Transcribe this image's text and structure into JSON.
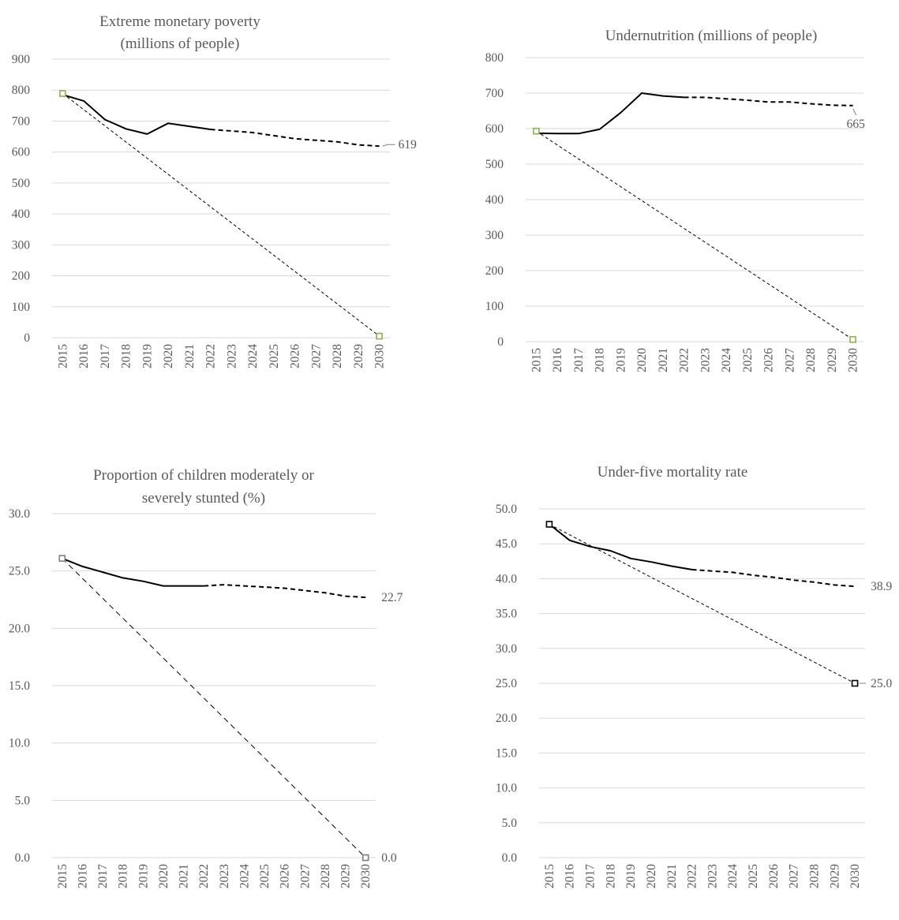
{
  "chart_data": [
    {
      "type": "line",
      "title": [
        "Extreme monetary poverty",
        "(millions of people)"
      ],
      "ylim": [
        0,
        900
      ],
      "ytick_step": 100,
      "ytick_decimals": 0,
      "grid": true,
      "categories": [
        "2015",
        "2016",
        "2017",
        "2018",
        "2019",
        "2020",
        "2021",
        "2022",
        "2023",
        "2024",
        "2025",
        "2026",
        "2027",
        "2028",
        "2029",
        "2030"
      ],
      "series": [
        {
          "style": "solid",
          "values": [
            785,
            765,
            705,
            675,
            658,
            693,
            683,
            673,
            null,
            null,
            null,
            null,
            null,
            null,
            null,
            null
          ]
        },
        {
          "style": "dashed",
          "values": [
            null,
            null,
            null,
            null,
            null,
            null,
            null,
            673,
            668,
            663,
            653,
            643,
            638,
            633,
            623,
            619
          ]
        },
        {
          "style": "target",
          "values": [
            789,
            null,
            null,
            null,
            null,
            null,
            null,
            null,
            null,
            null,
            null,
            null,
            null,
            null,
            null,
            5
          ]
        }
      ],
      "marker_color": "#8db04c",
      "end_labels": [
        {
          "text": "619",
          "value": 619
        }
      ]
    },
    {
      "type": "line",
      "title": [
        "Undernutrition (millions of people)"
      ],
      "ylim": [
        0,
        800
      ],
      "ytick_step": 100,
      "ytick_decimals": 0,
      "grid": true,
      "categories": [
        "2015",
        "2016",
        "2017",
        "2018",
        "2019",
        "2020",
        "2021",
        "2022",
        "2023",
        "2024",
        "2025",
        "2026",
        "2027",
        "2028",
        "2029",
        "2030"
      ],
      "series": [
        {
          "style": "solid",
          "values": [
            587,
            586,
            586,
            598,
            645,
            700,
            692,
            688,
            null,
            null,
            null,
            null,
            null,
            null,
            null,
            null
          ]
        },
        {
          "style": "dashed",
          "values": [
            null,
            null,
            null,
            null,
            null,
            null,
            null,
            688,
            688,
            684,
            680,
            675,
            675,
            670,
            666,
            665
          ]
        },
        {
          "style": "target",
          "values": [
            593,
            null,
            null,
            null,
            null,
            null,
            null,
            null,
            null,
            null,
            null,
            null,
            null,
            null,
            null,
            6
          ]
        }
      ],
      "marker_color": "#8db04c",
      "end_labels": [
        {
          "text": "665",
          "value": 665
        }
      ]
    },
    {
      "type": "line",
      "title": [
        "Proportion of children moderately or",
        "severely stunted (%)"
      ],
      "ylim": [
        0,
        30
      ],
      "ytick_step": 5,
      "ytick_decimals": 1,
      "grid": true,
      "categories": [
        "2015",
        "2016",
        "2017",
        "2018",
        "2019",
        "2020",
        "2021",
        "2022",
        "2023",
        "2024",
        "2025",
        "2026",
        "2027",
        "2028",
        "2029",
        "2030"
      ],
      "series": [
        {
          "style": "solid",
          "values": [
            26.1,
            25.4,
            24.9,
            24.4,
            24.1,
            23.7,
            23.7,
            23.7,
            null,
            null,
            null,
            null,
            null,
            null,
            null,
            null
          ]
        },
        {
          "style": "dashed",
          "values": [
            null,
            null,
            null,
            null,
            null,
            null,
            null,
            23.7,
            23.8,
            23.7,
            23.6,
            23.5,
            23.3,
            23.1,
            22.8,
            22.7
          ]
        },
        {
          "style": "target",
          "values": [
            26.1,
            null,
            null,
            null,
            null,
            null,
            null,
            null,
            null,
            null,
            null,
            null,
            null,
            null,
            null,
            0.0
          ]
        }
      ],
      "marker_color": "#808080",
      "end_labels": [
        {
          "text": "22.7",
          "value": 22.7
        },
        {
          "text": "0.0",
          "value": 0.0
        }
      ]
    },
    {
      "type": "line",
      "title": [
        "Under-five mortality rate"
      ],
      "ylim": [
        0,
        50
      ],
      "ytick_step": 5,
      "ytick_decimals": 1,
      "grid": true,
      "categories": [
        "2015",
        "2016",
        "2017",
        "2018",
        "2019",
        "2020",
        "2021",
        "2022",
        "2023",
        "2024",
        "2025",
        "2026",
        "2027",
        "2028",
        "2029",
        "2030"
      ],
      "series": [
        {
          "style": "solid",
          "values": [
            47.8,
            45.5,
            44.6,
            44.0,
            42.9,
            42.4,
            41.8,
            41.3,
            null,
            null,
            null,
            null,
            null,
            null,
            null,
            null
          ]
        },
        {
          "style": "dashed",
          "values": [
            null,
            null,
            null,
            null,
            null,
            null,
            null,
            41.3,
            41.1,
            40.9,
            40.5,
            40.2,
            39.8,
            39.5,
            39.1,
            38.9
          ]
        },
        {
          "style": "target",
          "values": [
            47.8,
            null,
            null,
            null,
            null,
            null,
            null,
            null,
            null,
            null,
            null,
            null,
            null,
            null,
            null,
            25.0
          ]
        }
      ],
      "marker_color": "#000000",
      "end_labels": [
        {
          "text": "38.9",
          "value": 38.9
        },
        {
          "text": "25.0",
          "value": 25.0
        }
      ]
    }
  ]
}
